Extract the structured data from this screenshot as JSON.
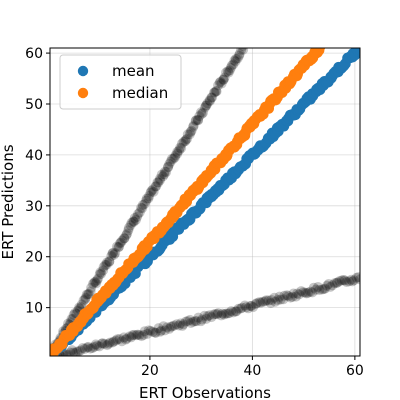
{
  "chart_data": {
    "type": "scatter",
    "xlabel": "ERT Observations",
    "ylabel": "ERT Predictions",
    "xlim": [
      0.5,
      61
    ],
    "ylim": [
      0.5,
      61
    ],
    "xticks": [
      20,
      40,
      60
    ],
    "yticks": [
      10,
      20,
      30,
      40,
      50,
      60
    ],
    "grid": true,
    "legend_position": "top-left",
    "colors": {
      "mean": "#1f77b4",
      "median": "#ff7f0e",
      "bounds": "#000000"
    },
    "series": [
      {
        "name": "mean",
        "legend": true,
        "slope": 1.0,
        "start": 0.5,
        "end": 61
      },
      {
        "name": "median",
        "legend": true,
        "slope": 1.15,
        "start": 0.5,
        "end": 53.2
      },
      {
        "name": "",
        "legend": false,
        "role": "upper",
        "slope": 1.6,
        "start": 0.5,
        "end": 38.5
      },
      {
        "name": "",
        "legend": false,
        "role": "lower",
        "slope": 0.26,
        "start": 0.5,
        "end": 61
      }
    ]
  }
}
